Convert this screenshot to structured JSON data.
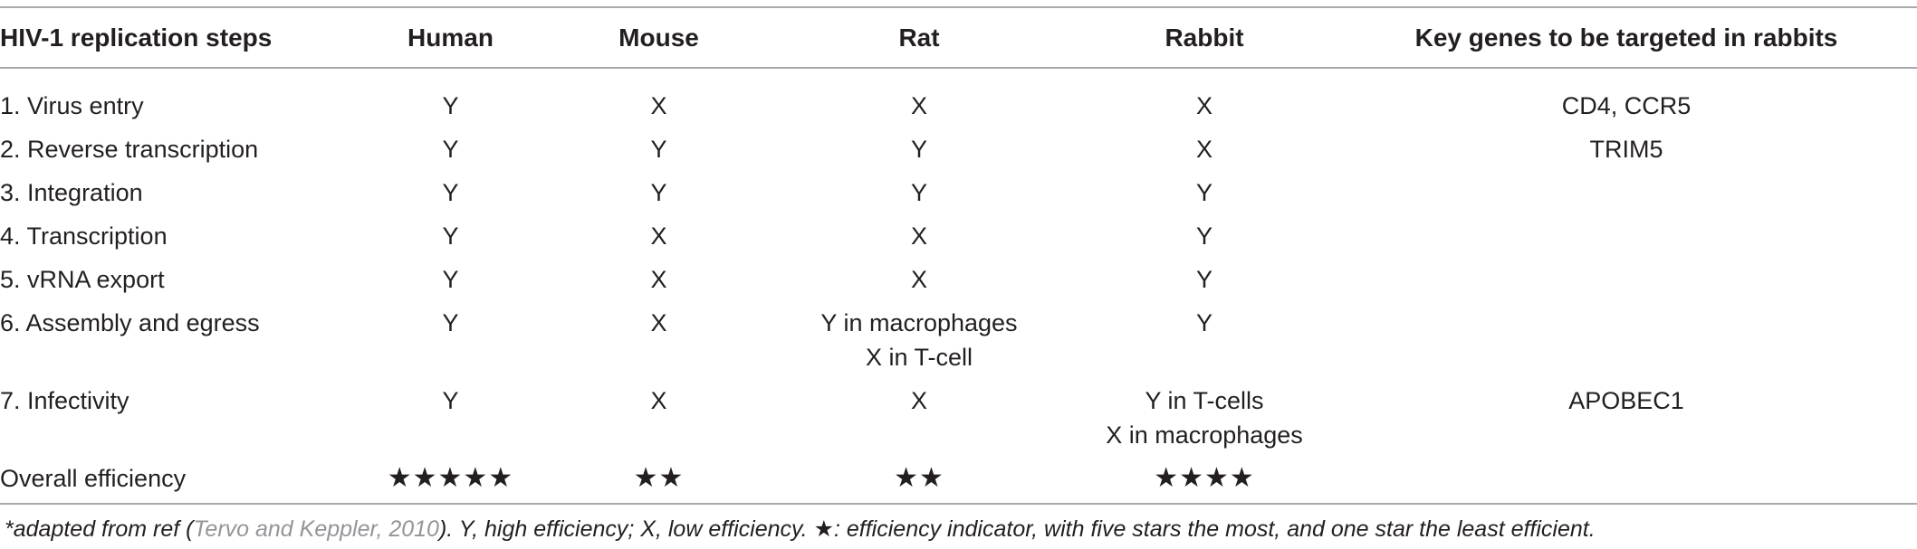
{
  "table": {
    "headers": [
      "HIV-1 replication steps",
      "Human",
      "Mouse",
      "Rat",
      "Rabbit",
      "Key genes to be targeted in rabbits"
    ],
    "rows": [
      {
        "step": "1. Virus entry",
        "human": "Y",
        "mouse": "X",
        "rat": [
          "X"
        ],
        "rabbit": [
          "X"
        ],
        "genes": "CD4, CCR5"
      },
      {
        "step": "2. Reverse transcription",
        "human": "Y",
        "mouse": "Y",
        "rat": [
          "Y"
        ],
        "rabbit": [
          "X"
        ],
        "genes": "TRIM5"
      },
      {
        "step": "3. Integration",
        "human": "Y",
        "mouse": "Y",
        "rat": [
          "Y"
        ],
        "rabbit": [
          "Y"
        ],
        "genes": ""
      },
      {
        "step": "4. Transcription",
        "human": "Y",
        "mouse": "X",
        "rat": [
          "X"
        ],
        "rabbit": [
          "Y"
        ],
        "genes": ""
      },
      {
        "step": "5. vRNA export",
        "human": "Y",
        "mouse": "X",
        "rat": [
          "X"
        ],
        "rabbit": [
          "Y"
        ],
        "genes": ""
      },
      {
        "step": "6. Assembly and egress",
        "human": "Y",
        "mouse": "X",
        "rat": [
          "Y in macrophages",
          "X in T-cell"
        ],
        "rabbit": [
          "Y"
        ],
        "genes": ""
      },
      {
        "step": "7. Infectivity",
        "human": "Y",
        "mouse": "X",
        "rat": [
          "X"
        ],
        "rabbit": [
          "Y in T-cells",
          "X in macrophages"
        ],
        "genes": "APOBEC1"
      }
    ],
    "efficiency": {
      "label": "Overall efficiency",
      "human": "★★★★★",
      "mouse": "★★",
      "rat": "★★",
      "rabbit": "★★★★"
    }
  },
  "footnote": {
    "prefix": "*adapted from ref (",
    "reference": "Tervo and Keppler, 2010",
    "middle": "). Y, high efficiency; X, low efficiency. ",
    "star": "★",
    "suffix": ": efficiency indicator, with five stars the most, and one star the least efficient."
  }
}
